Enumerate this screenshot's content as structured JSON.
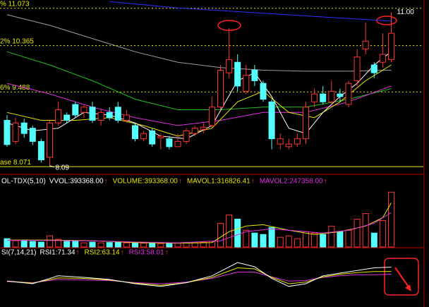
{
  "chart_data": [
    {
      "type": "candlestick",
      "ylim": [
        8.02,
        11.23
      ],
      "up_color": "#ff3232",
      "down_color": "#54ffff",
      "open": [
        8.95,
        8.55,
        8.9,
        8.8,
        8.55,
        8.25,
        8.9,
        9.05,
        9.25,
        9.1,
        9.2,
        8.95,
        9.1,
        9.2,
        8.95,
        8.85,
        8.6,
        8.75,
        8.62,
        8.6,
        8.45,
        8.55,
        8.7,
        8.78,
        8.85,
        9.2,
        9.85,
        10.05,
        9.5,
        9.9,
        9.65,
        9.3,
        8.5,
        8.45,
        8.5,
        8.6,
        9.3,
        9.45,
        9.3,
        9.45,
        9.25,
        9.7,
        10.3,
        10.0,
        10.05,
        10.1
      ],
      "high": [
        9.05,
        9.0,
        8.98,
        8.85,
        8.6,
        8.95,
        9.3,
        9.1,
        9.3,
        9.25,
        9.3,
        9.15,
        9.2,
        9.3,
        9.15,
        8.9,
        8.75,
        8.8,
        8.7,
        8.65,
        8.7,
        8.8,
        8.85,
        8.9,
        9.4,
        10.0,
        10.7,
        10.2,
        10.0,
        10.0,
        9.7,
        9.35,
        8.7,
        8.6,
        8.7,
        9.3,
        9.55,
        9.6,
        9.7,
        9.55,
        9.7,
        10.3,
        10.8,
        10.05,
        10.6,
        11.0
      ],
      "low": [
        8.45,
        8.5,
        8.62,
        8.48,
        8.15,
        8.09,
        8.85,
        8.9,
        9.0,
        9.0,
        8.9,
        8.85,
        8.95,
        8.9,
        8.9,
        8.55,
        8.55,
        8.45,
        8.4,
        8.4,
        8.45,
        8.5,
        8.65,
        8.7,
        8.8,
        9.15,
        9.75,
        9.5,
        9.45,
        9.6,
        9.3,
        8.4,
        8.4,
        8.4,
        8.45,
        8.5,
        9.2,
        9.25,
        9.25,
        9.3,
        9.2,
        9.6,
        10.2,
        9.75,
        9.95,
        10.05
      ],
      "close": [
        8.49,
        8.9,
        8.7,
        8.55,
        8.2,
        8.9,
        9.15,
        8.95,
        9.05,
        9.2,
        8.95,
        9.1,
        9.0,
        8.95,
        9.05,
        8.6,
        8.7,
        8.5,
        8.65,
        8.45,
        8.55,
        8.75,
        8.8,
        8.82,
        9.2,
        9.9,
        10.1,
        9.6,
        9.8,
        9.7,
        9.35,
        8.6,
        8.6,
        8.5,
        8.6,
        9.2,
        9.45,
        9.3,
        9.5,
        9.4,
        9.65,
        10.15,
        10.45,
        9.85,
        10.2,
        10.6
      ],
      "levels": [
        {
          "value": 11.073,
          "label": "% 11.073",
          "dashed": true
        },
        {
          "value": 10.365,
          "label": "2% 10.365",
          "dashed": true
        },
        {
          "value": 9.488,
          "label": "6% 9.488",
          "dashed": true
        },
        {
          "value": 8.071,
          "label": "ase 8.071",
          "dashed": false
        }
      ],
      "level_color": "#e8e800",
      "lines": [
        {
          "color": "#3030ff",
          "x": [
            12,
            20,
            30,
            40,
            45
          ],
          "values": [
            11.2,
            11.08,
            10.98,
            10.88,
            10.83
          ]
        },
        {
          "color": "#a0a0a0",
          "x": [
            0,
            5,
            10,
            15,
            20,
            25,
            30,
            35,
            40,
            45
          ],
          "values": [
            10.95,
            10.75,
            10.5,
            10.25,
            10.05,
            9.95,
            9.9,
            9.88,
            9.88,
            9.9
          ]
        },
        {
          "color": "#20c020",
          "x": [
            0,
            5,
            10,
            15,
            20,
            25,
            30,
            35,
            40,
            45
          ],
          "values": [
            10.25,
            10.0,
            9.7,
            9.35,
            9.15,
            9.15,
            9.2,
            9.2,
            9.35,
            9.55
          ]
        },
        {
          "color": "#e030e0",
          "x": [
            0,
            5,
            10,
            15,
            20,
            25,
            30,
            35,
            40,
            45
          ],
          "values": [
            9.65,
            9.45,
            9.2,
            9.0,
            8.85,
            8.95,
            9.1,
            9.1,
            9.3,
            9.6
          ]
        },
        {
          "color": "#e8e800",
          "x": [
            0,
            4,
            8,
            12,
            16,
            20,
            24,
            27,
            30,
            33,
            36,
            39,
            42,
            45
          ],
          "values": [
            9.1,
            8.95,
            8.95,
            9.0,
            8.85,
            8.65,
            8.8,
            9.3,
            9.5,
            9.1,
            9.0,
            9.3,
            9.7,
            10.0
          ]
        },
        {
          "color": "#ffffff",
          "x": [
            0,
            3,
            6,
            9,
            12,
            15,
            18,
            21,
            24,
            27,
            29,
            31,
            33,
            35,
            37,
            39,
            41,
            43,
            45
          ],
          "values": [
            8.9,
            8.75,
            8.8,
            9.1,
            9.05,
            8.9,
            8.65,
            8.6,
            8.85,
            9.7,
            9.85,
            9.4,
            8.8,
            8.7,
            9.1,
            9.4,
            9.65,
            10.0,
            10.25
          ]
        }
      ],
      "high_label": "11.00",
      "low_label": "8.09"
    },
    {
      "type": "bar",
      "ylim": [
        0,
        430000
      ],
      "header": [
        {
          "text": "OL-TDX(5,10)",
          "color": "#ffffff"
        },
        {
          "text": "VVOL:393368.00",
          "color": "#ffffff",
          "arrow": "↑"
        },
        {
          "text": "VOLUME:393368.00",
          "color": "#e8e800",
          "arrow": "↑"
        },
        {
          "text": "MAVOL1:316826.41",
          "color": "#e8e800",
          "arrow": "↑"
        },
        {
          "text": "MAVOL2:247358.00",
          "color": "#e030e0",
          "arrow": "↑"
        }
      ],
      "values": [
        60000,
        45000,
        50000,
        40000,
        35000,
        80000,
        55000,
        40000,
        45000,
        30000,
        35000,
        30000,
        32000,
        35000,
        30000,
        30000,
        28000,
        30000,
        25000,
        30000,
        28000,
        32000,
        30000,
        35000,
        40000,
        170000,
        230000,
        200000,
        120000,
        100000,
        90000,
        140000,
        70000,
        80000,
        60000,
        110000,
        100000,
        90000,
        150000,
        110000,
        120000,
        200000,
        240000,
        100000,
        190000,
        393368
      ],
      "lines": [
        {
          "color": "#e8e800",
          "x": [
            0,
            5,
            10,
            15,
            20,
            24,
            26,
            28,
            30,
            33,
            36,
            39,
            42,
            44,
            45
          ],
          "values": [
            50000,
            50000,
            45000,
            32000,
            28000,
            32000,
            110000,
            150000,
            160000,
            120000,
            90000,
            110000,
            150000,
            210000,
            316826.41
          ]
        },
        {
          "color": "#e030e0",
          "x": [
            0,
            5,
            10,
            15,
            20,
            25,
            28,
            31,
            34,
            37,
            40,
            43,
            45
          ],
          "values": [
            48000,
            47000,
            44000,
            36000,
            30000,
            45000,
            110000,
            130000,
            115000,
            100000,
            120000,
            170000,
            247358
          ]
        }
      ]
    },
    {
      "type": "line",
      "ylim": [
        0,
        100
      ],
      "header": [
        {
          "text": "SI(7,14,21)",
          "color": "#ffffff"
        },
        {
          "text": "RSI1:71.34",
          "color": "#ffffff",
          "arrow": "↑"
        },
        {
          "text": "RSI2:63.14",
          "color": "#e8e800",
          "arrow": "↑"
        },
        {
          "text": "RSI3:58.01",
          "color": "#e030e0",
          "arrow": "↑"
        }
      ],
      "series": [
        {
          "color": "#e030e0",
          "x": [
            0,
            3,
            6,
            9,
            12,
            15,
            18,
            21,
            24,
            27,
            29,
            31,
            33,
            35,
            37,
            39,
            41,
            43,
            45
          ],
          "values": [
            44,
            42,
            48,
            47,
            46,
            42,
            40,
            43,
            50,
            62,
            62,
            53,
            45,
            46,
            52,
            55,
            57,
            57,
            58.01
          ]
        },
        {
          "color": "#e8e800",
          "x": [
            0,
            3,
            6,
            9,
            12,
            15,
            18,
            21,
            24,
            27,
            29,
            31,
            33,
            35,
            37,
            39,
            41,
            43,
            45
          ],
          "values": [
            45,
            41,
            51,
            50,
            47,
            41,
            37,
            42,
            52,
            70,
            68,
            52,
            40,
            43,
            53,
            58,
            61,
            63,
            63.14
          ]
        },
        {
          "color": "#ffffff",
          "x": [
            0,
            3,
            6,
            9,
            12,
            15,
            18,
            21,
            24,
            27,
            29,
            31,
            33,
            35,
            37,
            39,
            41,
            43,
            45
          ],
          "values": [
            45,
            40,
            55,
            52,
            48,
            40,
            35,
            42,
            55,
            80,
            72,
            50,
            35,
            40,
            55,
            60,
            65,
            70,
            71.34
          ]
        }
      ]
    }
  ]
}
